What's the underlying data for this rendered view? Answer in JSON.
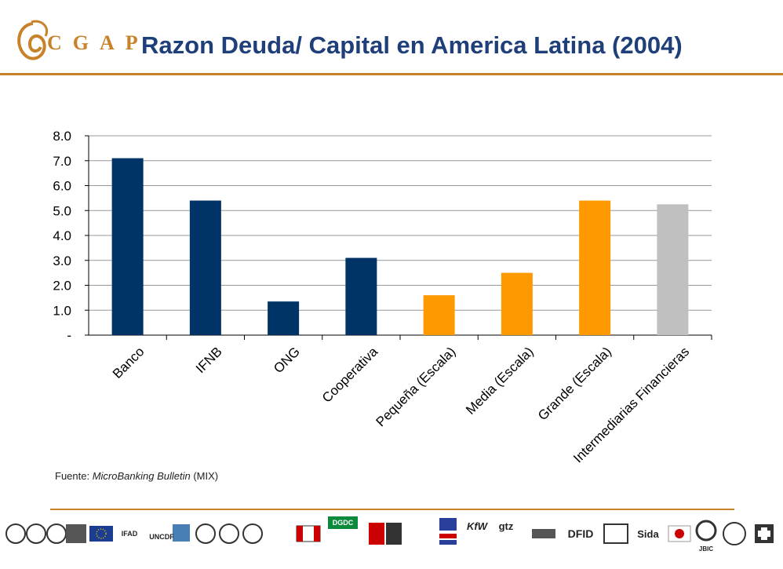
{
  "header": {
    "logo_text": "CGAP",
    "title": "Razon Deuda/ Capital en America Latina (2004)"
  },
  "source": {
    "prefix": "Fuente: ",
    "publication": "MicroBanking Bulletin",
    "suffix": " (MIX)"
  },
  "chart_data": {
    "type": "bar",
    "title": "",
    "xlabel": "",
    "ylabel": "",
    "ylim": [
      0,
      8
    ],
    "yticks": [
      "-",
      "1.0",
      "2.0",
      "3.0",
      "4.0",
      "5.0",
      "6.0",
      "7.0",
      "8.0"
    ],
    "grid": true,
    "categories": [
      "Banco",
      "IFNB",
      "ONG",
      "Cooperativa",
      "Pequeña  (Escala)",
      "Media  (Escala)",
      "Grande  (Escala)",
      "Intermediarias Financieras"
    ],
    "values": [
      7.1,
      5.4,
      1.35,
      3.1,
      1.6,
      2.5,
      5.4,
      5.25
    ],
    "colors": [
      "#003366",
      "#003366",
      "#003366",
      "#003366",
      "#ff9900",
      "#ff9900",
      "#ff9900",
      "#c0c0c0"
    ]
  },
  "footer": {
    "donor_logos": [
      "DGDC",
      "KfW",
      "gtz",
      "DFID",
      "Sida",
      "IFAD",
      "UNCDF",
      "JBIC"
    ]
  },
  "colors": {
    "accent": "#c8832a",
    "title": "#1f3f7a",
    "bar_navy": "#003366",
    "bar_orange": "#ff9900",
    "bar_gray": "#c0c0c0"
  }
}
